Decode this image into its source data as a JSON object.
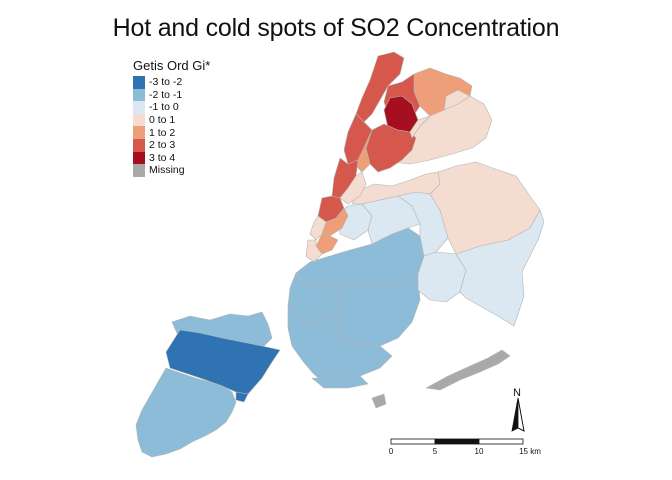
{
  "title": "Hot and cold spots of SO2 Concentration",
  "legend": {
    "title": "Getis Ord Gi*",
    "items": [
      {
        "label": "-3 to -2",
        "color": "#2f73b2"
      },
      {
        "label": "-2 to -1",
        "color": "#8dbcd9"
      },
      {
        "label": "-1 to 0",
        "color": "#dbe8f1"
      },
      {
        "label": "0 to 1",
        "color": "#f4ddd0"
      },
      {
        "label": "1 to 2",
        "color": "#ee9e78"
      },
      {
        "label": "2 to 3",
        "color": "#d6574c"
      },
      {
        "label": "3 to 4",
        "color": "#a50f1f"
      },
      {
        "label": "Missing",
        "color": "#a9a9a9"
      }
    ]
  },
  "north_arrow": {
    "label": "N"
  },
  "scale_bar": {
    "ticks": [
      "0",
      "5",
      "10",
      "15 km"
    ]
  },
  "colors": {
    "border": "#b5b5b5"
  }
}
